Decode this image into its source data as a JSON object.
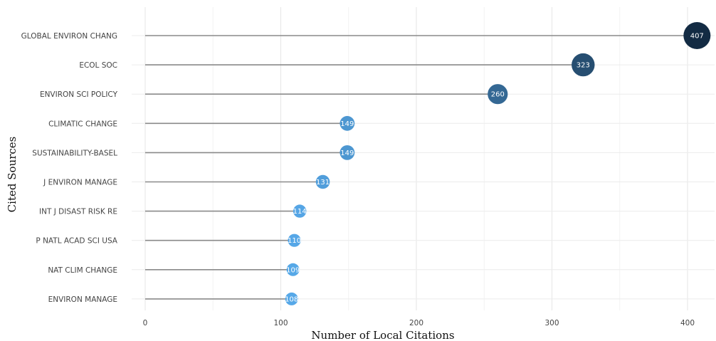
{
  "chart_data": {
    "type": "lollipop",
    "orientation": "horizontal",
    "xlabel": "Number of Local Citations",
    "ylabel": "Cited Sources",
    "xlim": [
      0,
      420
    ],
    "xticks": [
      0,
      100,
      200,
      300,
      400
    ],
    "grid": true,
    "categories": [
      "GLOBAL ENVIRON CHANG",
      "ECOL SOC",
      "ENVIRON SCI POLICY",
      "CLIMATIC CHANGE",
      "SUSTAINABILITY-BASEL",
      "J ENVIRON MANAGE",
      "INT J DISAST RISK RE",
      "P NATL ACAD SCI USA",
      "NAT CLIM CHANGE",
      "ENVIRON MANAGE"
    ],
    "values": [
      407,
      323,
      260,
      149,
      149,
      131,
      114,
      110,
      109,
      108
    ],
    "color_scale": {
      "low": "#56a8e8",
      "high": "#132b43"
    }
  }
}
